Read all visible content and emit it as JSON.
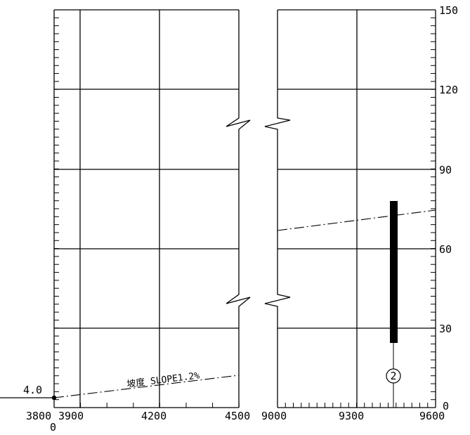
{
  "left_panel": {
    "x_ticks": [
      "3800",
      "3900",
      "4200",
      "4500"
    ],
    "x_origin_label": "0",
    "level_label": "4.0",
    "slope_label": "坡度 SLOPE1.2%"
  },
  "right_panel": {
    "x_ticks": [
      "9000",
      "9300",
      "9600"
    ],
    "y_ticks": [
      "150",
      "120",
      "90",
      "60",
      "30",
      "0"
    ],
    "pier_label": "2"
  },
  "colors": {
    "line": "#000000",
    "background": "#ffffff"
  }
}
